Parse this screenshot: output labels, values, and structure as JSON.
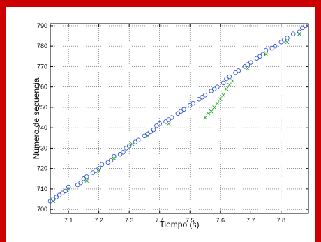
{
  "chart_data": {
    "type": "scatter",
    "xlabel": "Tiempo (s)",
    "ylabel": "Número de secuencia",
    "xlim": [
      7.04,
      7.89
    ],
    "ylim": [
      698,
      791
    ],
    "xticks": [
      "7.1",
      "7.2",
      "7.3",
      "7.4",
      "7.5",
      "7.6",
      "7.7",
      "7.8"
    ],
    "yticks": [
      "700",
      "710",
      "720",
      "730",
      "740",
      "750",
      "760",
      "770",
      "780",
      "790"
    ],
    "grid": true,
    "series": [
      {
        "marker": "circle",
        "color": "#3355dd",
        "points": [
          [
            7.04,
            704
          ],
          [
            7.05,
            705
          ],
          [
            7.06,
            706
          ],
          [
            7.07,
            707
          ],
          [
            7.08,
            708
          ],
          [
            7.09,
            709
          ],
          [
            7.1,
            711
          ],
          [
            7.13,
            712
          ],
          [
            7.14,
            713
          ],
          [
            7.15,
            715
          ],
          [
            7.16,
            716
          ],
          [
            7.18,
            718
          ],
          [
            7.19,
            719
          ],
          [
            7.2,
            720
          ],
          [
            7.21,
            722
          ],
          [
            7.23,
            723
          ],
          [
            7.24,
            724
          ],
          [
            7.25,
            726
          ],
          [
            7.27,
            727
          ],
          [
            7.28,
            728
          ],
          [
            7.29,
            730
          ],
          [
            7.3,
            731
          ],
          [
            7.32,
            733
          ],
          [
            7.33,
            734
          ],
          [
            7.35,
            736
          ],
          [
            7.36,
            737
          ],
          [
            7.37,
            738
          ],
          [
            7.38,
            739
          ],
          [
            7.39,
            741
          ],
          [
            7.4,
            742
          ],
          [
            7.42,
            743
          ],
          [
            7.43,
            744
          ],
          [
            7.44,
            745
          ],
          [
            7.46,
            747
          ],
          [
            7.47,
            748
          ],
          [
            7.48,
            749
          ],
          [
            7.5,
            751
          ],
          [
            7.51,
            752
          ],
          [
            7.53,
            754
          ],
          [
            7.54,
            755
          ],
          [
            7.55,
            756
          ],
          [
            7.57,
            758
          ],
          [
            7.58,
            759
          ],
          [
            7.59,
            760
          ],
          [
            7.61,
            762
          ],
          [
            7.62,
            764
          ],
          [
            7.63,
            765
          ],
          [
            7.65,
            767
          ],
          [
            7.66,
            768
          ],
          [
            7.68,
            770
          ],
          [
            7.69,
            771
          ],
          [
            7.7,
            772
          ],
          [
            7.72,
            774
          ],
          [
            7.73,
            775
          ],
          [
            7.74,
            776
          ],
          [
            7.75,
            778
          ],
          [
            7.77,
            779
          ],
          [
            7.78,
            780
          ],
          [
            7.8,
            782
          ],
          [
            7.81,
            783
          ],
          [
            7.82,
            784
          ],
          [
            7.84,
            786
          ],
          [
            7.86,
            787
          ],
          [
            7.87,
            789
          ],
          [
            7.88,
            790
          ]
        ]
      },
      {
        "marker": "cross",
        "color": "#22aa22",
        "points": [
          [
            7.05,
            704
          ],
          [
            7.1,
            710
          ],
          [
            7.16,
            714
          ],
          [
            7.2,
            719
          ],
          [
            7.25,
            725
          ],
          [
            7.31,
            732
          ],
          [
            7.36,
            736
          ],
          [
            7.43,
            742
          ],
          [
            7.55,
            745
          ],
          [
            7.56,
            747
          ],
          [
            7.57,
            748
          ],
          [
            7.58,
            750
          ],
          [
            7.59,
            752
          ],
          [
            7.6,
            754
          ],
          [
            7.61,
            756
          ],
          [
            7.62,
            759
          ],
          [
            7.63,
            761
          ],
          [
            7.64,
            763
          ],
          [
            7.69,
            769
          ],
          [
            7.75,
            776
          ],
          [
            7.82,
            782
          ],
          [
            7.86,
            786
          ]
        ]
      }
    ]
  }
}
